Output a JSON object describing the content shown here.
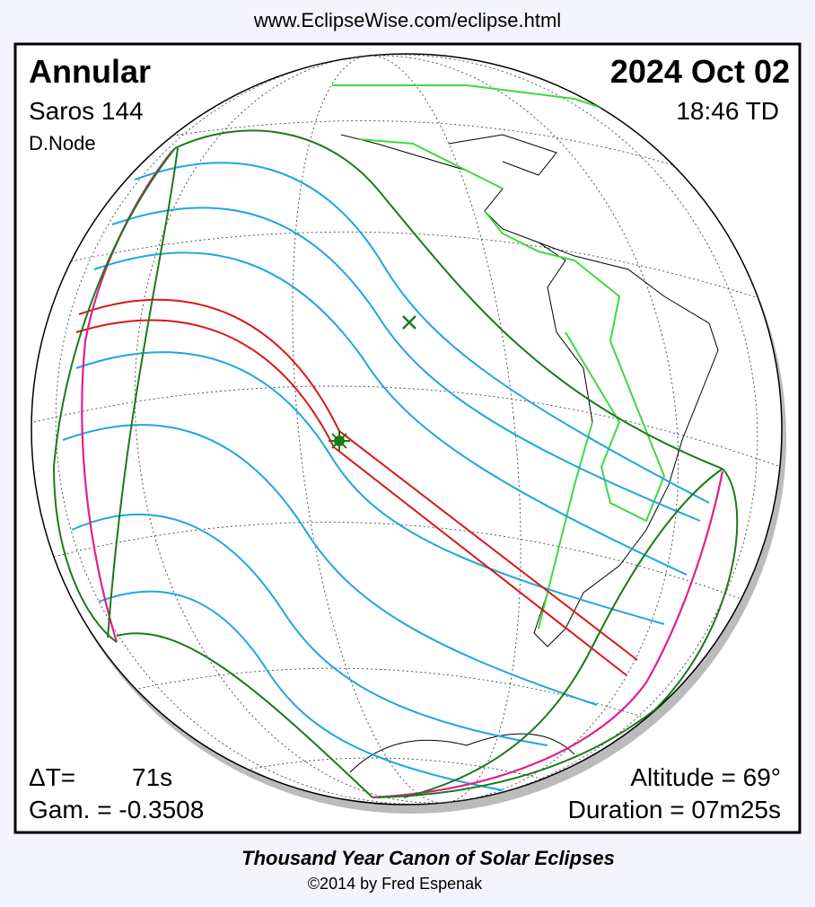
{
  "header": {
    "url": "www.EclipseWise.com/eclipse.html"
  },
  "eclipse": {
    "type": "Annular",
    "saros": "Saros 144",
    "node": "D.Node",
    "date": "2024 Oct 02",
    "time": "18:46 TD",
    "delta_t_label": "ΔT=",
    "delta_t": "71s",
    "gamma": "Gam. = -0.3508",
    "altitude": "Altitude = 69°",
    "duration": "Duration = 07m25s"
  },
  "footer": {
    "title": "Thousand Year Canon of Solar Eclipses",
    "credit": "©2014 by Fred Espenak"
  }
}
